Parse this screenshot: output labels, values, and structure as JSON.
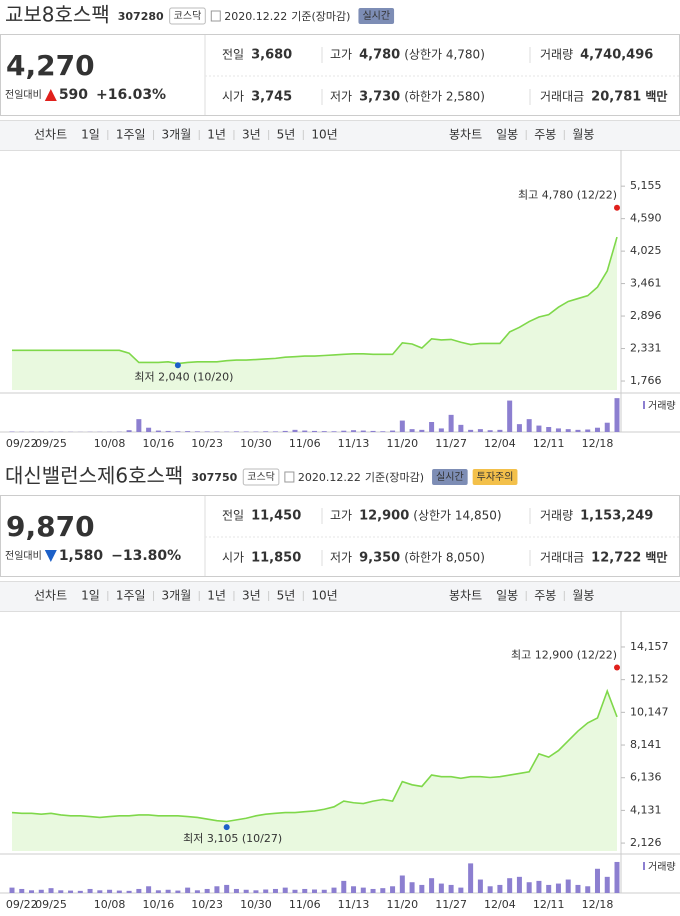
{
  "panels": [
    {
      "name": "교보8호스팩",
      "code": "307280",
      "market": "코스닥",
      "date": "2020.12.22",
      "basis": "기준(장마감)",
      "realtime": "실시간",
      "price": "4,270",
      "direction": "up",
      "change_label": "전일대비",
      "change": "590",
      "change_pct": "+16.03%",
      "info": [
        [
          {
            "label": "전일",
            "value": "3,680"
          },
          {
            "label": "고가",
            "value": "4,780",
            "note": "(상한가 4,780)",
            "color": "#e0201c"
          },
          {
            "label": "거래량",
            "value": "4,740,496"
          }
        ],
        [
          {
            "label": "시가",
            "value": "3,745",
            "color": "#e0201c"
          },
          {
            "label": "저가",
            "value": "3,730",
            "note": "(하한가 2,580)",
            "color": "#e0201c"
          },
          {
            "label": "거래대금",
            "value": "20,781",
            "unit": "백만"
          }
        ]
      ],
      "tabs_line": {
        "label": "선차트",
        "items": [
          "1일",
          "1주일",
          "3개월",
          "1년",
          "3년",
          "5년",
          "10년"
        ],
        "active": 2
      },
      "tabs_candle": {
        "label": "봉차트",
        "items": [
          "일봉",
          "주봉",
          "월봉"
        ]
      }
    },
    {
      "name": "대신밸런스제6호스팩",
      "code": "307750",
      "market": "코스닥",
      "date": "2020.12.22",
      "basis": "기준(장마감)",
      "realtime": "실시간",
      "warning": "투자주의",
      "price": "9,870",
      "direction": "down",
      "change_label": "전일대비",
      "change": "1,580",
      "change_pct": "−13.80%",
      "info": [
        [
          {
            "label": "전일",
            "value": "11,450"
          },
          {
            "label": "고가",
            "value": "12,900",
            "note": "(상한가 14,850)",
            "color": "#e0201c"
          },
          {
            "label": "거래량",
            "value": "1,153,249"
          }
        ],
        [
          {
            "label": "시가",
            "value": "11,850",
            "color": "#e0201c"
          },
          {
            "label": "저가",
            "value": "9,350",
            "note": "(하한가 8,050)",
            "color": "#1c60c8"
          },
          {
            "label": "거래대금",
            "value": "12,722",
            "unit": "백만"
          }
        ]
      ],
      "tabs_line": {
        "label": "선차트",
        "items": [
          "1일",
          "1주일",
          "3개월",
          "1년",
          "3년",
          "5년",
          "10년"
        ],
        "active": 2
      },
      "tabs_candle": {
        "label": "봉차트",
        "items": [
          "일봉",
          "주봉",
          "월봉"
        ]
      }
    }
  ],
  "chart_data": [
    {
      "type": "line",
      "color": "#7fd84a",
      "ylim": [
        1610,
        5610
      ],
      "yticks": [
        {
          "value": 5155,
          "label": "5,155"
        },
        {
          "value": 4590,
          "label": "4,590"
        },
        {
          "value": 4025,
          "label": "4,025"
        },
        {
          "value": 3461,
          "label": "3,461"
        },
        {
          "value": 2896,
          "label": "2,896"
        },
        {
          "value": 2331,
          "label": "2,331"
        },
        {
          "value": 1766,
          "label": "1,766"
        }
      ],
      "categories": [
        null,
        "09/22",
        null,
        null,
        "09/25",
        null,
        null,
        null,
        null,
        null,
        "10/08",
        null,
        null,
        null,
        null,
        "10/16",
        null,
        null,
        null,
        null,
        "10/23",
        null,
        null,
        null,
        null,
        "10/30",
        null,
        null,
        null,
        null,
        "11/06",
        null,
        null,
        null,
        null,
        "11/13",
        null,
        null,
        null,
        null,
        "11/20",
        null,
        null,
        null,
        null,
        "11/27",
        null,
        null,
        null,
        null,
        "12/04",
        null,
        null,
        null,
        null,
        "12/11",
        null,
        null,
        null,
        null,
        "12/18",
        null,
        null
      ],
      "values": [
        2300,
        2300,
        2300,
        2300,
        2300,
        2300,
        2300,
        2300,
        2300,
        2300,
        2300,
        2300,
        2250,
        2090,
        2090,
        2090,
        2100,
        2070,
        2090,
        2100,
        2100,
        2100,
        2120,
        2130,
        2130,
        2140,
        2150,
        2160,
        2180,
        2190,
        2200,
        2200,
        2210,
        2220,
        2230,
        2240,
        2240,
        2230,
        2230,
        2230,
        2430,
        2410,
        2340,
        2500,
        2480,
        2490,
        2440,
        2400,
        2420,
        2420,
        2420,
        2620,
        2700,
        2800,
        2880,
        2920,
        3050,
        3150,
        3200,
        3250,
        3400,
        3680,
        4270
      ],
      "high": {
        "label": "최고 4,780 (12/22)",
        "value": 4780
      },
      "low": {
        "label": "최저 2,040 (10/20)",
        "value": 2040
      },
      "volume": {
        "name": "거래량",
        "color": "#8c7fd0",
        "ylim": [
          0,
          4900000
        ],
        "values": [
          60000,
          40000,
          30000,
          30000,
          40000,
          30000,
          30000,
          20000,
          30000,
          30000,
          30000,
          40000,
          250000,
          1800000,
          600000,
          200000,
          150000,
          100000,
          120000,
          90000,
          80000,
          70000,
          60000,
          90000,
          70000,
          60000,
          100000,
          80000,
          150000,
          300000,
          200000,
          150000,
          120000,
          100000,
          180000,
          250000,
          200000,
          150000,
          100000,
          200000,
          1600000,
          400000,
          300000,
          1400000,
          500000,
          2400000,
          1000000,
          300000,
          400000,
          250000,
          300000,
          4400000,
          1100000,
          1800000,
          900000,
          700000,
          500000,
          400000,
          300000,
          350000,
          600000,
          1300000,
          4740496
        ]
      }
    },
    {
      "type": "line",
      "color": "#7fd84a",
      "ylim": [
        1640,
        15750
      ],
      "yticks": [
        {
          "value": 14157,
          "label": "14,157"
        },
        {
          "value": 12152,
          "label": "12,152"
        },
        {
          "value": 10147,
          "label": "10,147"
        },
        {
          "value": 8141,
          "label": "8,141"
        },
        {
          "value": 6136,
          "label": "6,136"
        },
        {
          "value": 4131,
          "label": "4,131"
        },
        {
          "value": 2126,
          "label": "2,126"
        }
      ],
      "categories": [
        null,
        "09/22",
        null,
        null,
        "09/25",
        null,
        null,
        null,
        null,
        null,
        "10/08",
        null,
        null,
        null,
        null,
        "10/16",
        null,
        null,
        null,
        null,
        "10/23",
        null,
        null,
        null,
        null,
        "10/30",
        null,
        null,
        null,
        null,
        "11/06",
        null,
        null,
        null,
        null,
        "11/13",
        null,
        null,
        null,
        null,
        "11/20",
        null,
        null,
        null,
        null,
        "11/27",
        null,
        null,
        null,
        null,
        "12/04",
        null,
        null,
        null,
        null,
        "12/11",
        null,
        null,
        null,
        null,
        "12/18",
        null,
        null
      ],
      "values": [
        4000,
        3950,
        3950,
        3900,
        3950,
        3850,
        3800,
        3800,
        3750,
        3700,
        3750,
        3800,
        3800,
        3850,
        3850,
        3800,
        3800,
        3800,
        3750,
        3700,
        3600,
        3500,
        3450,
        3550,
        3650,
        3800,
        3900,
        3950,
        4000,
        4000,
        4050,
        4100,
        4200,
        4350,
        4700,
        4600,
        4550,
        4700,
        4800,
        4700,
        5900,
        5700,
        5600,
        6300,
        6200,
        6200,
        6100,
        6200,
        6200,
        6150,
        6200,
        6300,
        6400,
        6500,
        7600,
        7400,
        7800,
        8400,
        9000,
        9500,
        9800,
        11450,
        9870
      ],
      "high": {
        "label": "최고 12,900 (12/22)",
        "value": 12900
      },
      "low": {
        "label": "최저 3,105 (10/27)",
        "value": 3105
      },
      "volume": {
        "name": "거래량",
        "color": "#8c7fd0",
        "ylim": [
          0,
          1300000
        ],
        "values": [
          200000,
          150000,
          100000,
          120000,
          180000,
          100000,
          90000,
          80000,
          150000,
          100000,
          120000,
          90000,
          80000,
          150000,
          250000,
          100000,
          120000,
          90000,
          200000,
          100000,
          150000,
          250000,
          300000,
          150000,
          120000,
          100000,
          130000,
          150000,
          200000,
          120000,
          150000,
          130000,
          120000,
          200000,
          450000,
          250000,
          200000,
          150000,
          180000,
          250000,
          650000,
          400000,
          300000,
          550000,
          350000,
          300000,
          200000,
          1100000,
          500000,
          250000,
          300000,
          550000,
          600000,
          400000,
          450000,
          300000,
          350000,
          500000,
          300000,
          250000,
          900000,
          600000,
          1153249
        ]
      }
    }
  ]
}
